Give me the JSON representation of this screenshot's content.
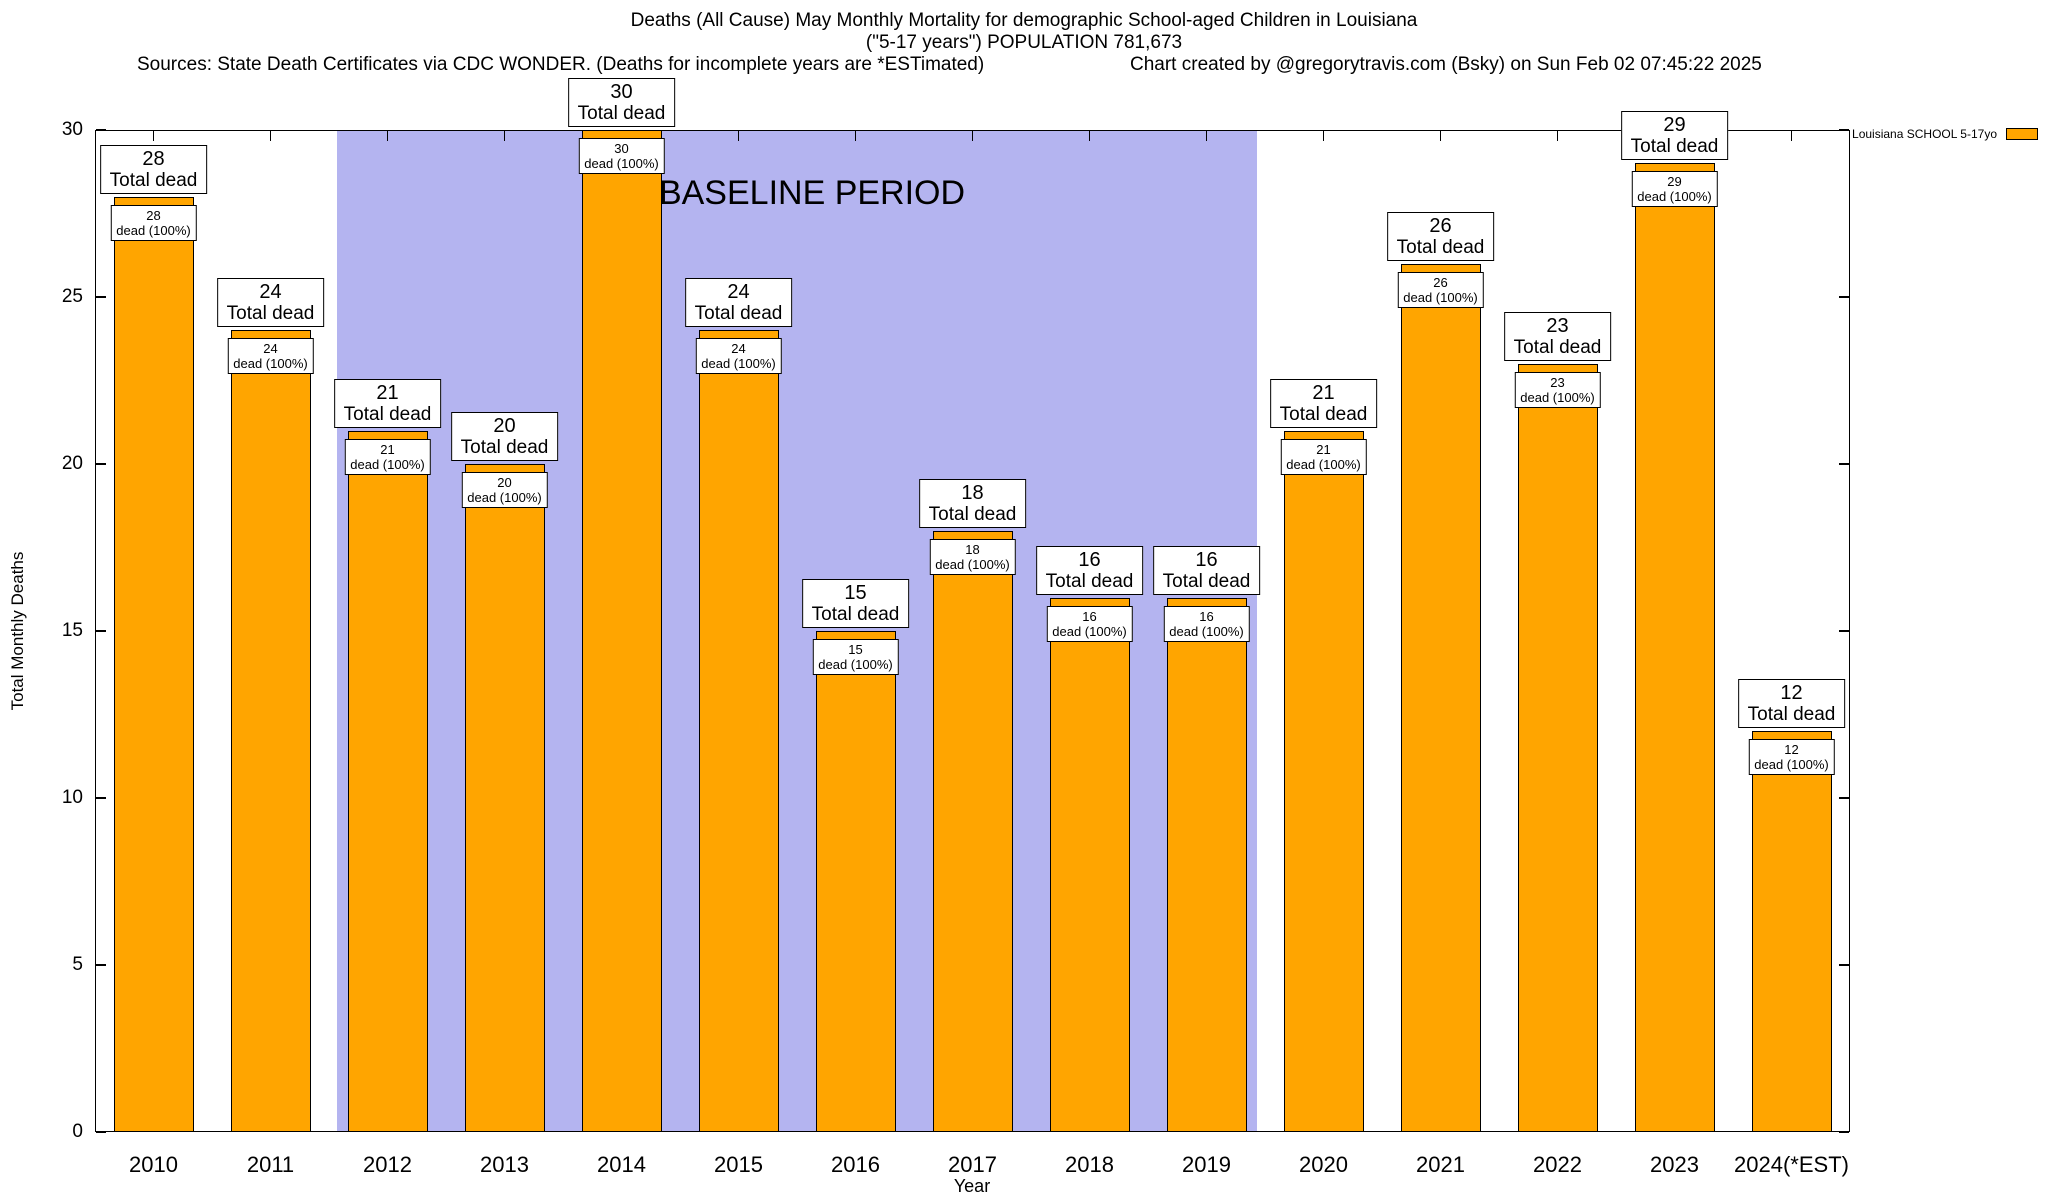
{
  "header": {
    "title_line1": "Deaths (All Cause) May Monthly Mortality for demographic School-aged Children in Louisiana",
    "title_line2": "(\"5-17 years\") POPULATION 781,673",
    "sources": "Sources: State Death Certificates via CDC WONDER. (Deaths for incomplete years are *ESTimated)",
    "credit": "Chart created by @gregorytravis.com (Bsky) on Sun Feb 02 07:45:22 2025"
  },
  "legend": {
    "label": "Louisiana SCHOOL 5-17yo",
    "swatch_color": "#FFA500"
  },
  "chart_data": {
    "type": "bar",
    "title": "Deaths (All Cause) May Monthly Mortality for demographic School-aged Children in Louisiana (\"5-17 years\") POPULATION 781,673",
    "xlabel": "Year",
    "ylabel": "Total Monthly Deaths",
    "ylim": [
      0,
      30
    ],
    "yticks": [
      0,
      5,
      10,
      15,
      20,
      25,
      30
    ],
    "grid": false,
    "legend_position": "top-right",
    "categories": [
      "2010",
      "2011",
      "2012",
      "2013",
      "2014",
      "2015",
      "2016",
      "2017",
      "2018",
      "2019",
      "2020",
      "2021",
      "2022",
      "2023",
      "2024(*EST)"
    ],
    "series": [
      {
        "name": "Louisiana SCHOOL 5-17yo",
        "color": "#FFA500",
        "values": [
          28,
          24,
          21,
          20,
          30,
          24,
          15,
          18,
          16,
          16,
          21,
          26,
          23,
          29,
          12
        ]
      }
    ],
    "bar_top_label_suffix": "Total dead",
    "bar_inner_label_suffix": "dead (100%)",
    "baseline_region": {
      "label": "BASELINE PERIOD",
      "start_category": "2012",
      "end_category": "2019",
      "color": "#b4b4f0"
    }
  }
}
